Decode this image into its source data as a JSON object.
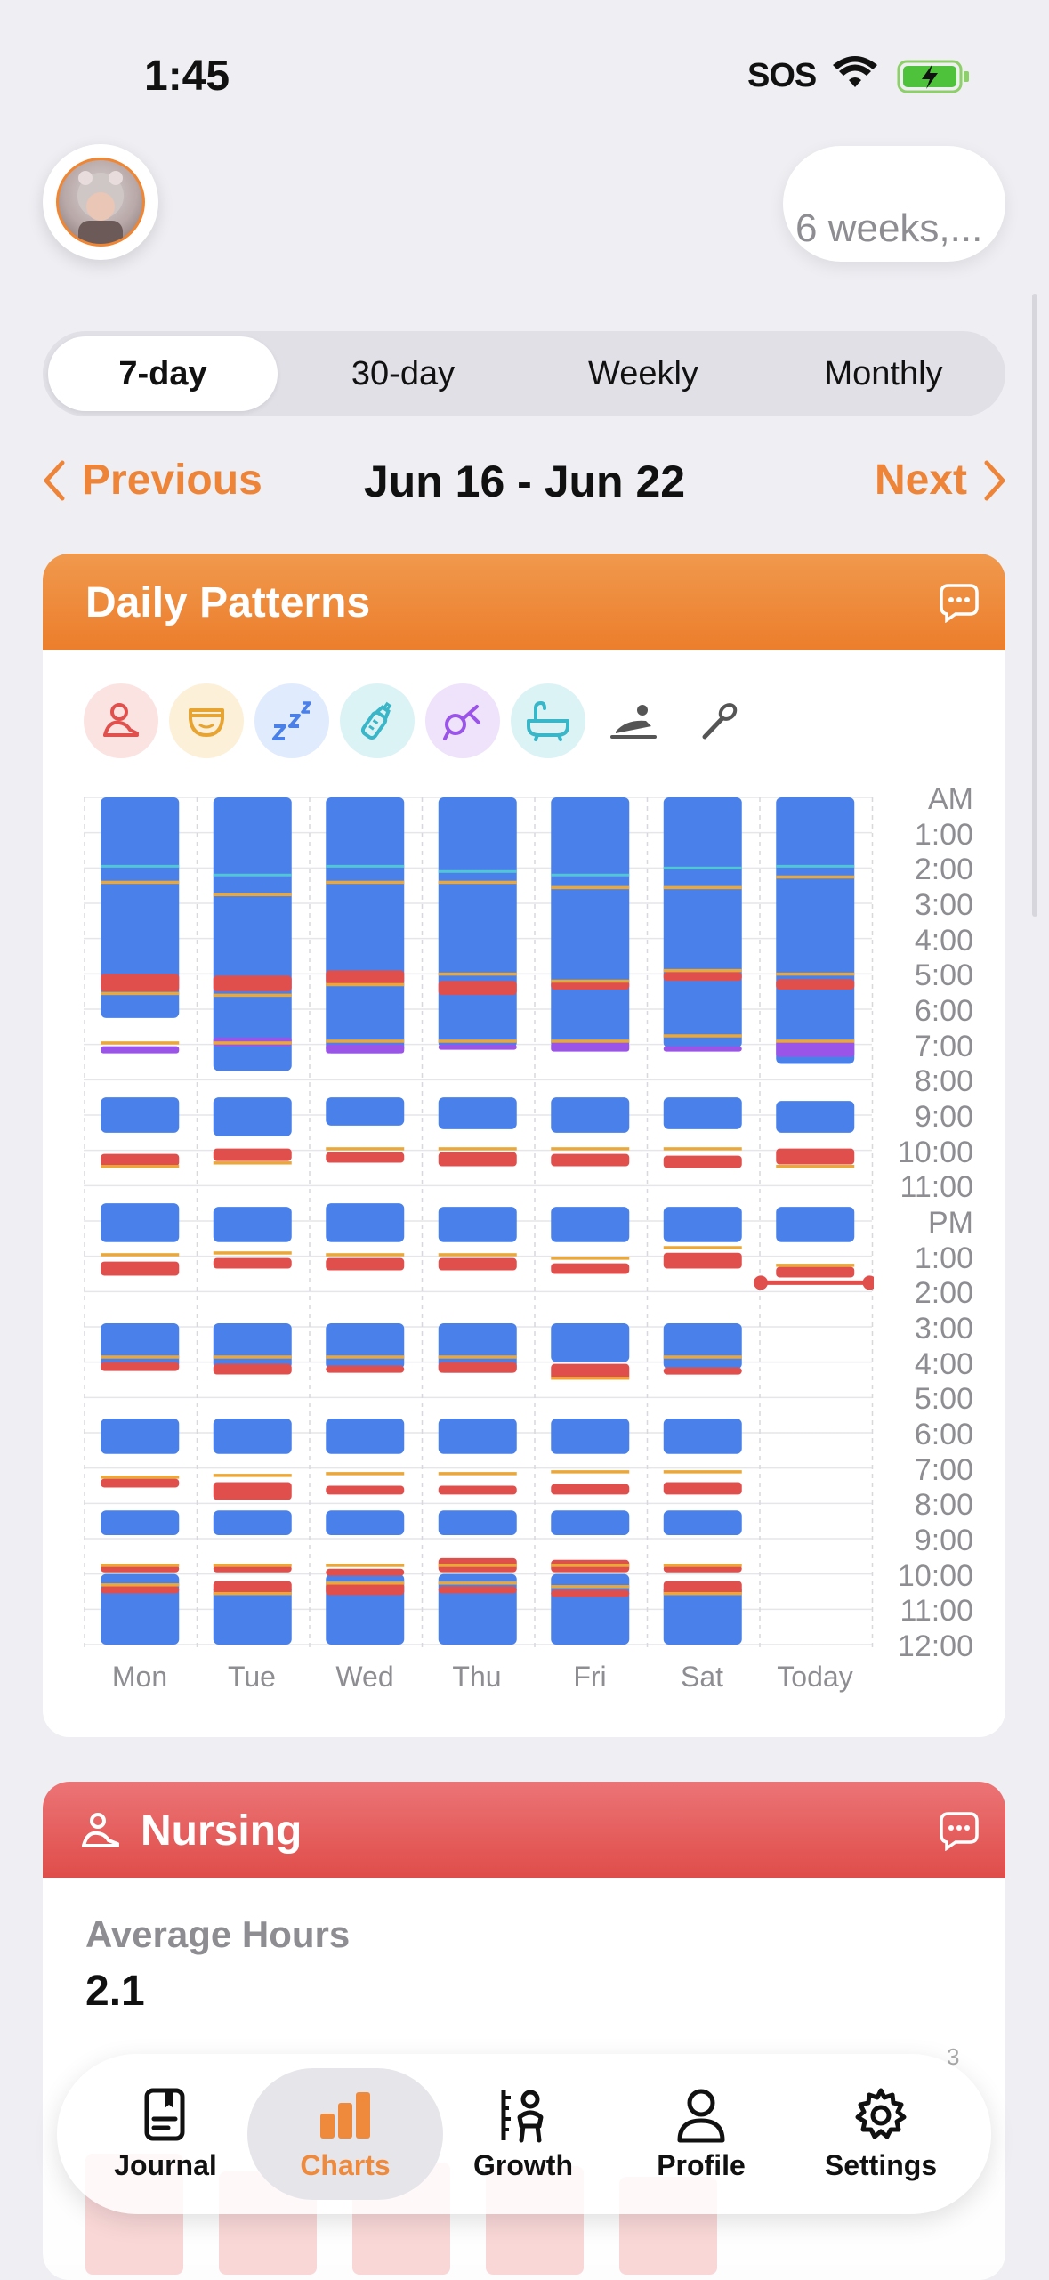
{
  "status_bar": {
    "time": "1:45",
    "sos": "SOS"
  },
  "header": {
    "age_label": "6 weeks,..."
  },
  "range_tabs": [
    {
      "label": "7-day",
      "active": true
    },
    {
      "label": "30-day",
      "active": false
    },
    {
      "label": "Weekly",
      "active": false
    },
    {
      "label": "Monthly",
      "active": false
    }
  ],
  "date_nav": {
    "previous": "Previous",
    "range": "Jun 16 - Jun 22",
    "next": "Next"
  },
  "daily_patterns": {
    "title": "Daily Patterns",
    "filters": [
      {
        "icon": "nursing-icon",
        "color": "#e0514e"
      },
      {
        "icon": "diaper-icon",
        "color": "#e8a431"
      },
      {
        "icon": "sleep-icon",
        "color": "#4a80e8"
      },
      {
        "icon": "bottle-icon",
        "color": "#39b6c8"
      },
      {
        "icon": "pump-icon",
        "color": "#9a55e8"
      },
      {
        "icon": "bath-icon",
        "color": "#39b6c8"
      },
      {
        "icon": "tummy-time-icon",
        "color": "#555555"
      },
      {
        "icon": "medicine-icon",
        "color": "#555555"
      }
    ]
  },
  "chart_data": {
    "type": "timeline",
    "days": [
      "Mon",
      "Tue",
      "Wed",
      "Thu",
      "Fri",
      "Sat",
      "Today"
    ],
    "time_labels": [
      "AM",
      "1:00",
      "2:00",
      "3:00",
      "4:00",
      "5:00",
      "6:00",
      "7:00",
      "8:00",
      "9:00",
      "10:00",
      "11:00",
      "PM",
      "1:00",
      "2:00",
      "3:00",
      "4:00",
      "5:00",
      "6:00",
      "7:00",
      "8:00",
      "9:00",
      "10:00",
      "11:00",
      "12:00"
    ],
    "colors": {
      "sleep": "#4a80ea",
      "nursing": "#e04f4c",
      "diaper": "#eaa73a",
      "bottle": "#52c6d4",
      "pump": "#9a55e8"
    },
    "current_time_hour": 13.75,
    "sleep": [
      [
        [
          0,
          6.25
        ],
        [
          8.5,
          9.5
        ],
        [
          11.5,
          12.6
        ],
        [
          14.9,
          16.2
        ],
        [
          17.6,
          18.6
        ],
        [
          20.2,
          20.9
        ],
        [
          22.0,
          24.0
        ]
      ],
      [
        [
          0,
          7.75
        ],
        [
          8.5,
          9.6
        ],
        [
          11.6,
          12.6
        ],
        [
          14.9,
          16.2
        ],
        [
          17.6,
          18.6
        ],
        [
          20.2,
          20.9
        ],
        [
          22.3,
          24.0
        ]
      ],
      [
        [
          0,
          7.25
        ],
        [
          8.5,
          9.3
        ],
        [
          11.5,
          12.6
        ],
        [
          14.9,
          16.2
        ],
        [
          17.6,
          18.6
        ],
        [
          20.2,
          20.9
        ],
        [
          22.0,
          24.0
        ]
      ],
      [
        [
          0,
          7.1
        ],
        [
          8.5,
          9.4
        ],
        [
          11.6,
          12.6
        ],
        [
          14.9,
          16.3
        ],
        [
          17.6,
          18.6
        ],
        [
          20.2,
          20.9
        ],
        [
          22.0,
          24.0
        ]
      ],
      [
        [
          0,
          7.1
        ],
        [
          8.5,
          9.5
        ],
        [
          11.6,
          12.6
        ],
        [
          14.9,
          16.0
        ],
        [
          17.6,
          18.6
        ],
        [
          20.2,
          20.9
        ],
        [
          22.0,
          24.0
        ]
      ],
      [
        [
          0,
          7.1
        ],
        [
          8.5,
          9.4
        ],
        [
          11.6,
          12.6
        ],
        [
          14.9,
          16.2
        ],
        [
          17.6,
          18.6
        ],
        [
          20.2,
          20.9
        ],
        [
          22.3,
          24.0
        ]
      ],
      [
        [
          0,
          7.55
        ],
        [
          8.6,
          9.5
        ],
        [
          11.6,
          12.6
        ]
      ]
    ],
    "nursing": [
      [
        [
          5.0,
          5.5
        ],
        [
          10.1,
          10.45
        ],
        [
          13.15,
          13.55
        ],
        [
          16.0,
          16.25
        ],
        [
          19.3,
          19.55
        ],
        [
          21.75,
          21.95
        ],
        [
          22.35,
          22.5
        ]
      ],
      [
        [
          5.05,
          5.5
        ],
        [
          9.95,
          10.3
        ],
        [
          13.05,
          13.35
        ],
        [
          16.05,
          16.35
        ],
        [
          19.4,
          19.9
        ],
        [
          21.75,
          21.95
        ],
        [
          22.2,
          22.55
        ]
      ],
      [
        [
          4.9,
          5.3
        ],
        [
          10.05,
          10.35
        ],
        [
          13.05,
          13.4
        ],
        [
          16.1,
          16.25
        ],
        [
          19.5,
          19.75
        ],
        [
          21.85,
          22.0
        ],
        [
          22.25,
          22.6
        ]
      ],
      [
        [
          5.2,
          5.6
        ],
        [
          10.05,
          10.45
        ],
        [
          13.05,
          13.4
        ],
        [
          16.0,
          16.3
        ],
        [
          19.5,
          19.75
        ],
        [
          21.55,
          21.95
        ],
        [
          22.35,
          22.5
        ]
      ],
      [
        [
          5.2,
          5.45
        ],
        [
          10.1,
          10.45
        ],
        [
          13.2,
          13.5
        ],
        [
          16.05,
          16.5
        ],
        [
          19.45,
          19.75
        ],
        [
          21.6,
          21.95
        ],
        [
          22.45,
          22.6
        ]
      ],
      [
        [
          4.95,
          5.2
        ],
        [
          10.15,
          10.5
        ],
        [
          12.9,
          13.35
        ],
        [
          16.15,
          16.35
        ],
        [
          19.4,
          19.75
        ],
        [
          21.75,
          21.95
        ],
        [
          22.2,
          22.6
        ]
      ],
      [
        [
          5.15,
          5.45
        ],
        [
          9.95,
          10.4
        ],
        [
          13.3,
          13.6
        ]
      ]
    ],
    "diaper": [
      [
        2.4,
        5.55,
        6.95,
        10.45,
        12.95,
        15.85,
        19.25,
        21.75,
        22.3
      ],
      [
        2.75,
        5.6,
        6.95,
        10.35,
        12.9,
        15.85,
        19.2,
        21.75,
        22.55
      ],
      [
        2.4,
        5.3,
        6.9,
        9.95,
        12.95,
        15.85,
        19.15,
        21.75,
        22.25
      ],
      [
        2.4,
        5.0,
        6.9,
        9.95,
        12.95,
        15.85,
        19.15,
        21.75,
        22.25
      ],
      [
        2.55,
        5.2,
        6.9,
        9.95,
        13.05,
        16.45,
        19.1,
        21.75,
        22.35
      ],
      [
        2.55,
        4.9,
        6.75,
        9.95,
        12.75,
        15.85,
        19.1,
        21.75,
        22.55
      ],
      [
        2.25,
        5.0,
        6.9,
        10.45,
        13.25
      ]
    ],
    "bottle": [
      1.95,
      2.2,
      1.95,
      2.1,
      2.2,
      2.0,
      1.95
    ],
    "pump": [
      [
        7.05,
        7.25
      ],
      [
        6.8,
        7.05
      ],
      [
        7.0,
        7.25
      ],
      [
        7.0,
        7.15
      ],
      [
        6.95,
        7.2
      ],
      [
        7.05,
        7.2
      ],
      [
        6.9,
        7.35
      ]
    ]
  },
  "nursing_card": {
    "title": "Nursing",
    "avg_label": "Average Hours",
    "avg_value": "2.1",
    "axis_value": "3"
  },
  "tabbar": [
    {
      "label": "Journal",
      "icon": "journal-icon"
    },
    {
      "label": "Charts",
      "icon": "charts-icon",
      "active": true
    },
    {
      "label": "Growth",
      "icon": "growth-icon"
    },
    {
      "label": "Profile",
      "icon": "profile-icon"
    },
    {
      "label": "Settings",
      "icon": "settings-icon"
    }
  ]
}
